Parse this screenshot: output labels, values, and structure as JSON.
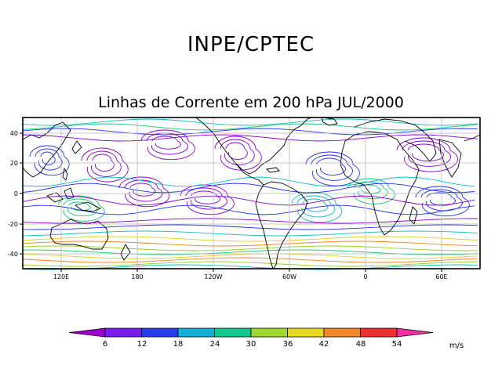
{
  "header": {
    "title": "INPE/CPTEC",
    "subtitle": "Linhas de Corrente em 200 hPa JUL/2000"
  },
  "map": {
    "lat_labels": [
      "40",
      "20",
      "0",
      "-20",
      "-40"
    ],
    "lon_labels": [
      "120E",
      "180",
      "120W",
      "60W",
      "0",
      "60E"
    ],
    "grid": true,
    "streamline_colors": [
      "#8a00cc",
      "#2030f0",
      "#10b8c8",
      "#10c878",
      "#90d020",
      "#e0d020",
      "#f08020",
      "#e02020"
    ]
  },
  "colorbar": {
    "labels": [
      "6",
      "12",
      "18",
      "24",
      "30",
      "36",
      "42",
      "48",
      "54"
    ],
    "units": "m/s",
    "colors": [
      "#a000d0",
      "#7a1cf0",
      "#2a3cf0",
      "#14b0d8",
      "#10c890",
      "#a0d830",
      "#e8d820",
      "#f08828",
      "#f03030",
      "#f030a0"
    ]
  }
}
